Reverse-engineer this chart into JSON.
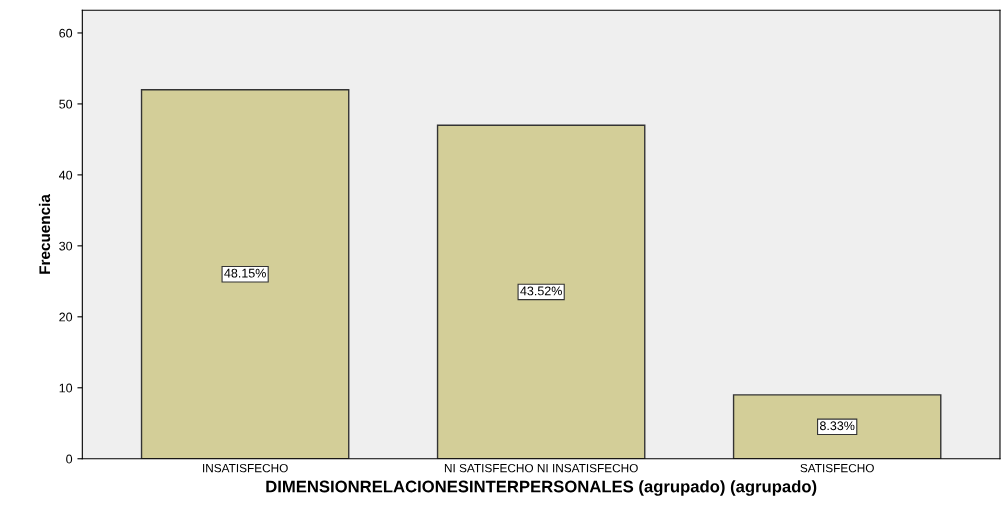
{
  "chart_data": {
    "type": "bar",
    "xlabel": "DIMENSIONRELACIONESINTERPERSONALES (agrupado) (agrupado)",
    "ylabel": "Frecuencia",
    "categories": [
      "INSATISFECHO",
      "NI SATISFECHO NI INSATISFECHO",
      "SATISFECHO"
    ],
    "values": [
      52,
      47,
      9
    ],
    "color": "#d3ce98",
    "annotations": [
      "48.15%",
      "43.52%",
      "8.33%"
    ],
    "ylim": [
      0,
      63.2
    ],
    "yticks": [
      0,
      10,
      20,
      30,
      40,
      50,
      60
    ],
    "grid": false,
    "legend": false
  }
}
